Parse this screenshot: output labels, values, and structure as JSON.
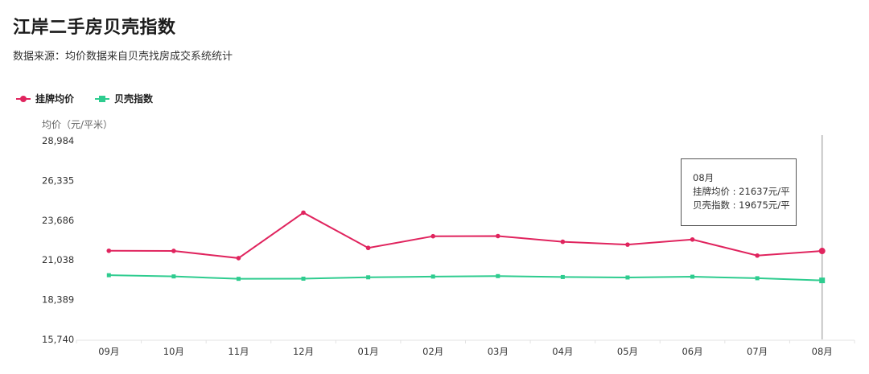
{
  "page": {
    "title": "江岸二手房贝壳指数",
    "subtitle": "数据来源：均价数据来自贝壳找房成交系统统计"
  },
  "legend": [
    {
      "label": "挂牌均价",
      "color": "#e0245e"
    },
    {
      "label": "贝壳指数",
      "color": "#2ecc8f"
    }
  ],
  "tooltip": {
    "month": "08月",
    "line1": "挂牌均价 : 21637元/平",
    "line2": "贝壳指数 : 19675元/平"
  },
  "chart_data": {
    "type": "line",
    "ylabel": "均价（元/平米）",
    "ylim": [
      15740,
      28984
    ],
    "yticks": [
      "28,984",
      "26,335",
      "23,686",
      "21,038",
      "18,389",
      "15,740"
    ],
    "categories": [
      "09月",
      "10月",
      "11月",
      "12月",
      "01月",
      "02月",
      "03月",
      "04月",
      "05月",
      "06月",
      "07月",
      "08月"
    ],
    "series": [
      {
        "name": "挂牌均价",
        "color": "#e0245e",
        "marker": "circle",
        "values": [
          21650,
          21640,
          21160,
          24190,
          21840,
          22620,
          22630,
          22250,
          22060,
          22400,
          21330,
          21637
        ]
      },
      {
        "name": "贝壳指数",
        "color": "#2ecc8f",
        "marker": "square",
        "values": [
          20020,
          19940,
          19780,
          19790,
          19880,
          19930,
          19960,
          19900,
          19870,
          19920,
          19820,
          19675
        ]
      }
    ],
    "highlight_index": 11
  }
}
